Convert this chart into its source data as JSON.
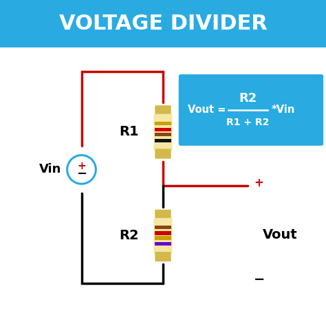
{
  "title": "VOLTAGE DIVIDER",
  "title_bg": "#29ABE2",
  "title_color": "white",
  "bg_color": "white",
  "wire_color_red": "#CC0000",
  "wire_color_black": "#000000",
  "resistor_body_color": "#F5E6A3",
  "resistor_cap_color": "#D4B84A",
  "r1_bands": [
    "#C8A000",
    "#CC0000",
    "#8B4513",
    "#111111"
  ],
  "r2_bands": [
    "#8B4513",
    "#CC0000",
    "#C8A000",
    "#6600CC"
  ],
  "formula_bg": "#29ABE2",
  "formula_color": "white",
  "label_r1": "R1",
  "label_r2": "R2",
  "label_vin": "Vin",
  "label_vout": "Vout",
  "label_plus": "+",
  "label_minus": "-",
  "node_color": "#29ABE2"
}
